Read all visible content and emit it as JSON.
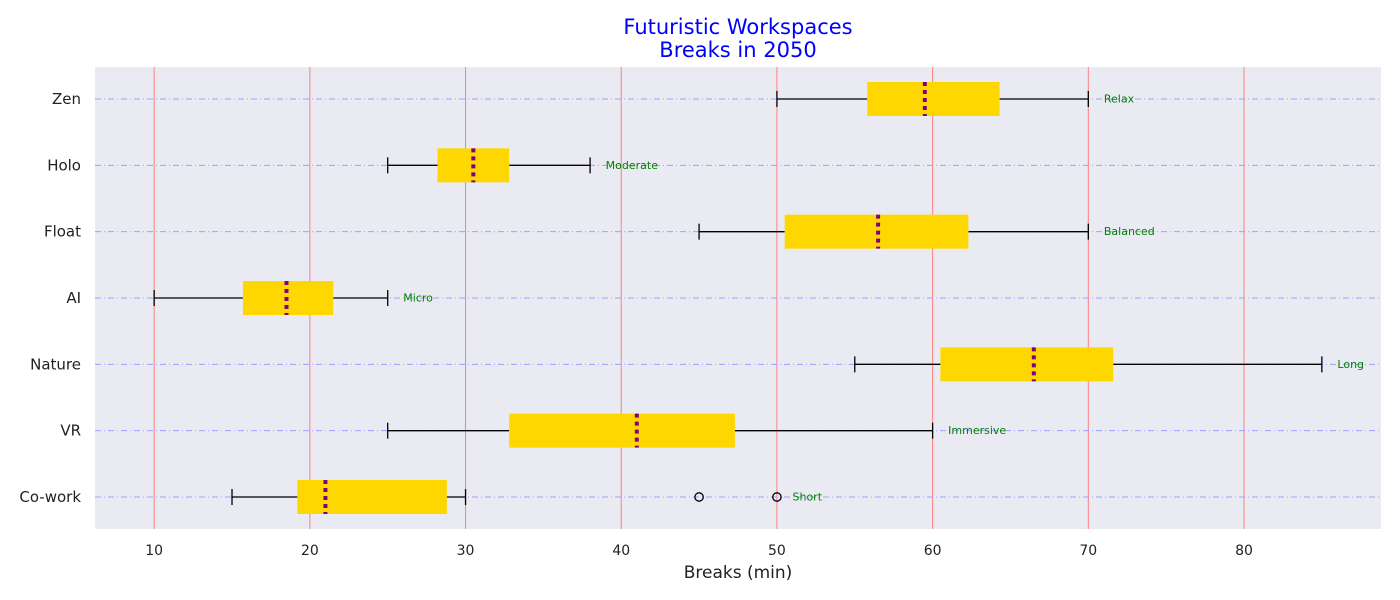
{
  "chart_data": {
    "type": "box",
    "orientation": "horizontal",
    "title": "Futuristic Workspaces\nBreaks in 2050",
    "xlabel": "Breaks (min)",
    "ylabel": "",
    "xlim": [
      6.2,
      88.8
    ],
    "xticks": [
      10,
      20,
      30,
      40,
      50,
      60,
      70,
      80
    ],
    "grid": {
      "vertical": true,
      "horizontal": true
    },
    "colors": {
      "title": "#0000ff",
      "plot_background": "#eaeaf2",
      "box_fill": "#ffd700",
      "median": "#800080",
      "vertical_grid": "#ff7f7f",
      "horizontal_grid": "#a0a0ff",
      "annotation": "#008000",
      "whisker": "#000000"
    },
    "categories": [
      "Co-work",
      "VR",
      "Nature",
      "AI",
      "Float",
      "Holo",
      "Zen"
    ],
    "boxes": [
      {
        "category": "Co-work",
        "whisker_low": 15,
        "q1": 19.2,
        "median": 21,
        "q3": 28.8,
        "whisker_high": 30,
        "outliers": [
          45,
          50
        ],
        "annotation": "Short"
      },
      {
        "category": "VR",
        "whisker_low": 25,
        "q1": 32.8,
        "median": 41,
        "q3": 47.3,
        "whisker_high": 60,
        "outliers": [],
        "annotation": "Immersive"
      },
      {
        "category": "Nature",
        "whisker_low": 55,
        "q1": 60.5,
        "median": 66.5,
        "q3": 71.6,
        "whisker_high": 85,
        "outliers": [],
        "annotation": "Long"
      },
      {
        "category": "AI",
        "whisker_low": 10,
        "q1": 15.7,
        "median": 18.5,
        "q3": 21.5,
        "whisker_high": 25,
        "outliers": [],
        "annotation": "Micro"
      },
      {
        "category": "Float",
        "whisker_low": 45,
        "q1": 50.5,
        "median": 56.5,
        "q3": 62.3,
        "whisker_high": 70,
        "outliers": [],
        "annotation": "Balanced"
      },
      {
        "category": "Holo",
        "whisker_low": 25,
        "q1": 28.2,
        "median": 30.5,
        "q3": 32.8,
        "whisker_high": 38,
        "outliers": [],
        "annotation": "Moderate"
      },
      {
        "category": "Zen",
        "whisker_low": 50,
        "q1": 55.8,
        "median": 59.5,
        "q3": 64.3,
        "whisker_high": 70,
        "outliers": [],
        "annotation": "Relax"
      }
    ]
  }
}
